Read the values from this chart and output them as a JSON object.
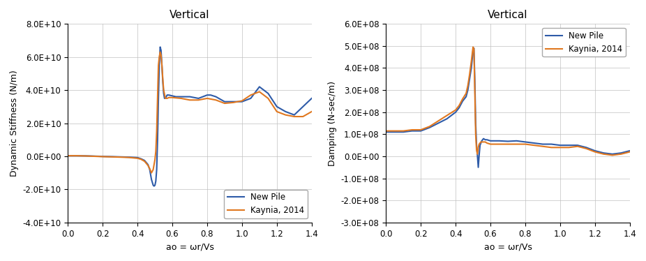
{
  "title": "Vertical",
  "color_new": "#2E5BA8",
  "color_kaynia": "#E07820",
  "legend_new": "New Pile",
  "legend_kaynia": "Kaynia, 2014",
  "xlabel": "ao = ωr/Vs",
  "ylabel_left": "Dynamic Stiffness (N/m)",
  "ylabel_right": "Damping (N-sec/m)",
  "stiffness_new_x": [
    0.0,
    0.05,
    0.1,
    0.15,
    0.2,
    0.25,
    0.3,
    0.35,
    0.4,
    0.42,
    0.44,
    0.46,
    0.47,
    0.48,
    0.49,
    0.495,
    0.5,
    0.505,
    0.51,
    0.515,
    0.52,
    0.525,
    0.53,
    0.535,
    0.54,
    0.545,
    0.55,
    0.555,
    0.56,
    0.57,
    0.58,
    0.6,
    0.62,
    0.65,
    0.7,
    0.75,
    0.8,
    0.82,
    0.85,
    0.9,
    0.95,
    1.0,
    1.05,
    1.1,
    1.15,
    1.2,
    1.25,
    1.3,
    1.35,
    1.4
  ],
  "stiffness_new_y": [
    300000000.0,
    300000000.0,
    250000000.0,
    100000000.0,
    -100000000.0,
    -200000000.0,
    -350000000.0,
    -500000000.0,
    -800000000.0,
    -1500000000.0,
    -2500000000.0,
    -5000000000.0,
    -8000000000.0,
    -14000000000.0,
    -17500000000.0,
    -18000000000.0,
    -17500000000.0,
    -15000000000.0,
    -8000000000.0,
    10000000000.0,
    35000000000.0,
    55000000000.0,
    66000000000.0,
    64000000000.0,
    55000000000.0,
    45000000000.0,
    38000000000.0,
    35000000000.0,
    35000000000.0,
    37000000000.0,
    37000000000.0,
    36500000000.0,
    36000000000.0,
    36000000000.0,
    36000000000.0,
    35000000000.0,
    37000000000.0,
    37000000000.0,
    36000000000.0,
    33000000000.0,
    33000000000.0,
    33000000000.0,
    35000000000.0,
    42000000000.0,
    38000000000.0,
    30000000000.0,
    27000000000.0,
    25000000000.0,
    30000000000.0,
    35000000000.0
  ],
  "stiffness_kaynia_x": [
    0.0,
    0.05,
    0.1,
    0.15,
    0.2,
    0.25,
    0.3,
    0.35,
    0.4,
    0.42,
    0.44,
    0.46,
    0.47,
    0.48,
    0.49,
    0.495,
    0.5,
    0.505,
    0.51,
    0.515,
    0.52,
    0.525,
    0.53,
    0.535,
    0.54,
    0.545,
    0.55,
    0.56,
    0.57,
    0.58,
    0.6,
    0.65,
    0.7,
    0.75,
    0.8,
    0.85,
    0.9,
    0.95,
    1.0,
    1.05,
    1.1,
    1.15,
    1.2,
    1.25,
    1.3,
    1.35,
    1.4
  ],
  "stiffness_kaynia_y": [
    350000000.0,
    350000000.0,
    200000000.0,
    0,
    -200000000.0,
    -350000000.0,
    -500000000.0,
    -700000000.0,
    -1200000000.0,
    -1800000000.0,
    -3000000000.0,
    -5500000000.0,
    -7500000000.0,
    -10000000000.0,
    -8000000000.0,
    -5000000000.0,
    -2000000000.0,
    3000000000.0,
    15000000000.0,
    35000000000.0,
    55000000000.0,
    60000000000.0,
    63000000000.0,
    61000000000.0,
    55000000000.0,
    47000000000.0,
    40000000000.0,
    35000000000.0,
    35000000000.0,
    35500000000.0,
    35500000000.0,
    35000000000.0,
    34000000000.0,
    34000000000.0,
    35000000000.0,
    34000000000.0,
    32000000000.0,
    32500000000.0,
    33500000000.0,
    37000000000.0,
    39000000000.0,
    35000000000.0,
    27000000000.0,
    25000000000.0,
    24000000000.0,
    24000000000.0,
    27000000000.0
  ],
  "damping_new_x": [
    0.0,
    0.05,
    0.1,
    0.15,
    0.2,
    0.25,
    0.3,
    0.35,
    0.4,
    0.42,
    0.44,
    0.46,
    0.47,
    0.48,
    0.49,
    0.5,
    0.505,
    0.51,
    0.515,
    0.52,
    0.525,
    0.53,
    0.535,
    0.54,
    0.545,
    0.55,
    0.555,
    0.56,
    0.57,
    0.58,
    0.6,
    0.65,
    0.7,
    0.75,
    0.8,
    0.85,
    0.9,
    0.95,
    1.0,
    1.05,
    1.1,
    1.15,
    1.2,
    1.25,
    1.3,
    1.35,
    1.4
  ],
  "damping_new_y": [
    110000000.0,
    110000000.0,
    110000000.0,
    115000000.0,
    115000000.0,
    130000000.0,
    150000000.0,
    170000000.0,
    200000000.0,
    220000000.0,
    250000000.0,
    270000000.0,
    300000000.0,
    350000000.0,
    400000000.0,
    480000000.0,
    490000000.0,
    350000000.0,
    150000000.0,
    50000000.0,
    5000000.0,
    -50000000.0,
    5000000.0,
    50000000.0,
    60000000.0,
    70000000.0,
    75000000.0,
    80000000.0,
    75000000.0,
    75000000.0,
    70000000.0,
    70000000.0,
    68000000.0,
    70000000.0,
    65000000.0,
    60000000.0,
    55000000.0,
    55000000.0,
    50000000.0,
    50000000.0,
    50000000.0,
    40000000.0,
    25000000.0,
    15000000.0,
    10000000.0,
    15000000.0,
    25000000.0
  ],
  "damping_kaynia_x": [
    0.0,
    0.05,
    0.1,
    0.15,
    0.2,
    0.25,
    0.3,
    0.35,
    0.4,
    0.42,
    0.44,
    0.46,
    0.47,
    0.48,
    0.49,
    0.5,
    0.505,
    0.51,
    0.515,
    0.52,
    0.525,
    0.53,
    0.535,
    0.54,
    0.545,
    0.55,
    0.56,
    0.57,
    0.58,
    0.6,
    0.65,
    0.7,
    0.75,
    0.8,
    0.85,
    0.9,
    0.95,
    1.0,
    1.05,
    1.1,
    1.15,
    1.2,
    1.25,
    1.3,
    1.35,
    1.4
  ],
  "damping_kaynia_y": [
    115000000.0,
    115000000.0,
    115000000.0,
    120000000.0,
    120000000.0,
    135000000.0,
    160000000.0,
    185000000.0,
    210000000.0,
    230000000.0,
    260000000.0,
    285000000.0,
    320000000.0,
    370000000.0,
    430000000.0,
    495000000.0,
    485000000.0,
    300000000.0,
    100000000.0,
    30000000.0,
    10000000.0,
    40000000.0,
    55000000.0,
    60000000.0,
    65000000.0,
    65000000.0,
    65000000.0,
    65000000.0,
    60000000.0,
    55000000.0,
    55000000.0,
    55000000.0,
    55000000.0,
    55000000.0,
    50000000.0,
    45000000.0,
    40000000.0,
    40000000.0,
    40000000.0,
    45000000.0,
    35000000.0,
    20000000.0,
    10000000.0,
    5000000.0,
    10000000.0,
    20000000.0
  ],
  "stiffness_ylim": [
    -40000000000.0,
    80000000000.0
  ],
  "stiffness_yticks": [
    -40000000000.0,
    -20000000000.0,
    0,
    20000000000.0,
    40000000000.0,
    60000000000.0,
    80000000000.0
  ],
  "damping_ylim": [
    -300000000.0,
    600000000.0
  ],
  "damping_yticks": [
    -300000000.0,
    -200000000.0,
    -100000000.0,
    0,
    100000000.0,
    200000000.0,
    300000000.0,
    400000000.0,
    500000000.0,
    600000000.0
  ],
  "xlim": [
    0.0,
    1.4
  ],
  "xticks": [
    0.0,
    0.2,
    0.4,
    0.6,
    0.8,
    1.0,
    1.2,
    1.4
  ]
}
